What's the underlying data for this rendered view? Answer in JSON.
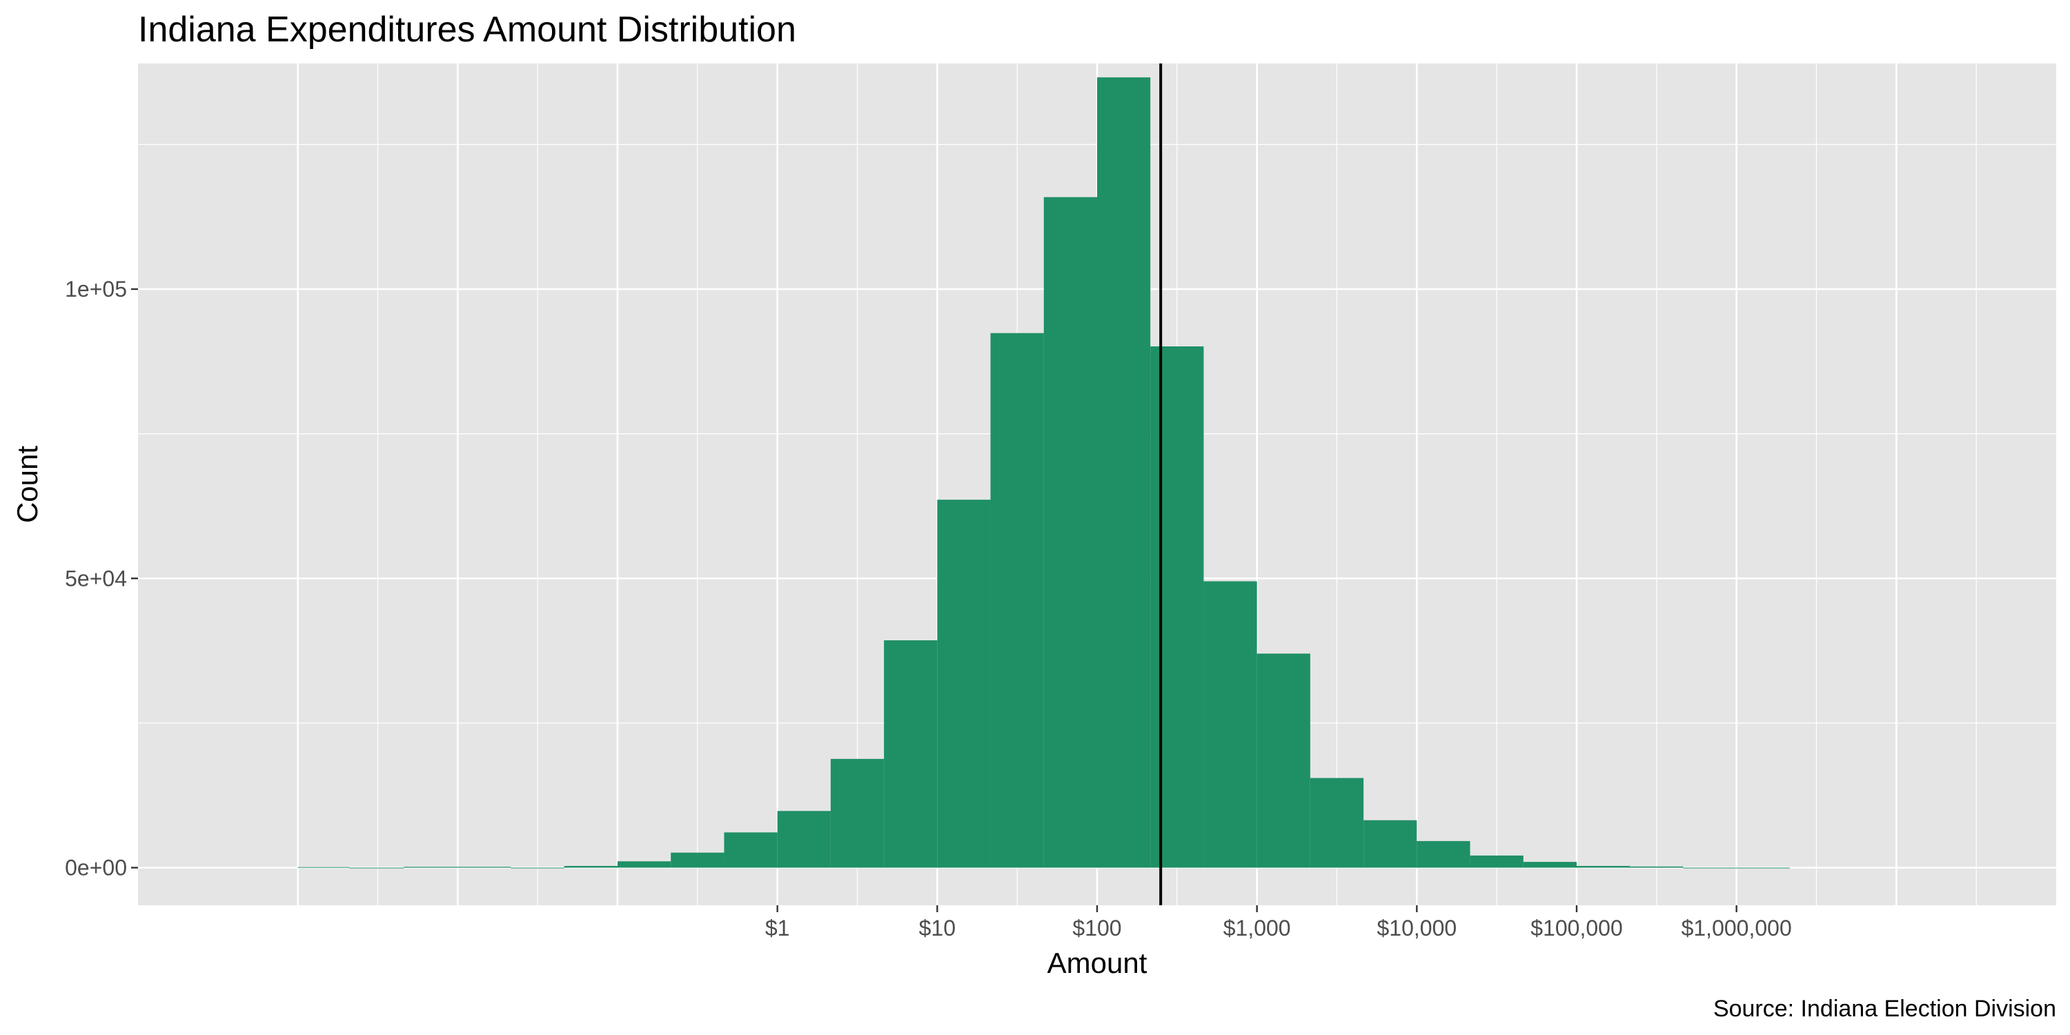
{
  "chart_data": {
    "type": "bar",
    "title": "Indiana Expenditures Amount Distribution",
    "xlabel": "Amount",
    "ylabel": "Count",
    "caption": "Source: Indiana Election Division",
    "x_scale": "log10",
    "x_range": [
      0.0001,
      100000000
    ],
    "ylim": [
      -6500,
      139000
    ],
    "grid": true,
    "x_tick_values": [
      1,
      10,
      100,
      1000,
      10000,
      100000,
      1000000
    ],
    "x_tick_labels": [
      "$1",
      "$10",
      "$100",
      "$1,000",
      "$10,000",
      "$100,000",
      "$1,000,000"
    ],
    "y_tick_values": [
      0,
      50000,
      100000
    ],
    "y_tick_labels": [
      "0e+00",
      "5e+04",
      "1e+05"
    ],
    "bin_lower_edges": [
      0.001,
      0.0021,
      0.0046,
      0.01,
      0.0215,
      0.0464,
      0.1,
      0.2154,
      0.4642,
      1,
      2.154,
      4.642,
      10,
      21.54,
      46.42,
      100,
      215.4,
      464.2,
      1000,
      2154,
      4642,
      10000,
      21544,
      46416,
      100000,
      215443,
      464159,
      1000000
    ],
    "bin_upper_edges": [
      0.0021,
      0.0046,
      0.01,
      0.0215,
      0.0464,
      0.1,
      0.2154,
      0.4642,
      1,
      2.154,
      4.642,
      10,
      21.54,
      46.42,
      100,
      215.4,
      464.2,
      1000,
      2154,
      4642,
      10000,
      21544,
      46416,
      100000,
      215443,
      464159,
      1000000,
      2154435
    ],
    "counts": [
      100,
      0,
      150,
      150,
      0,
      300,
      1100,
      2600,
      6100,
      9800,
      18800,
      39300,
      63600,
      92400,
      115900,
      136600,
      90100,
      49500,
      37000,
      15500,
      8200,
      4600,
      2100,
      1000,
      300,
      200,
      0,
      0
    ],
    "reference_line": {
      "x": 250
    },
    "colors": {
      "bar": "#1f9066",
      "panel_background": "#e5e5e5",
      "grid_line": "#ffffff",
      "reference_line": "#000000"
    }
  }
}
